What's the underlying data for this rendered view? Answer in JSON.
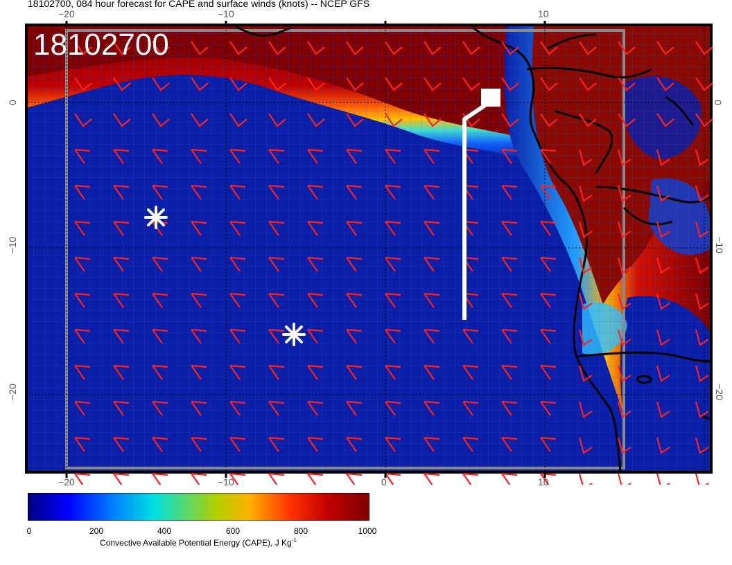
{
  "title": "18102700, 084 hour forecast for CAPE and surface winds (knots) -- NCEP GFS",
  "stamp": "18102700",
  "colorbar": {
    "ticks": [
      "0",
      "200",
      "400",
      "600",
      "800",
      "1000"
    ],
    "label": "Convective Available Potential Energy (CAPE), J Kg",
    "label_sup": "-1",
    "colors": [
      "#00007f",
      "#0000ff",
      "#0080ff",
      "#00e0e0",
      "#b0d000",
      "#ffb000",
      "#ff3000",
      "#c00000",
      "#7f0000"
    ]
  },
  "axes": {
    "lon_labels": [
      "−20",
      "−10",
      "0",
      "10"
    ],
    "lat_labels": [
      "0",
      "−10",
      "−20"
    ]
  },
  "markers": [
    "asterisk-1",
    "asterisk-2"
  ],
  "colors": {
    "ocean": "#0a1fa8",
    "land_hot": "#7a0000",
    "wind_barb": "#ff2020",
    "coast": "#000000"
  }
}
